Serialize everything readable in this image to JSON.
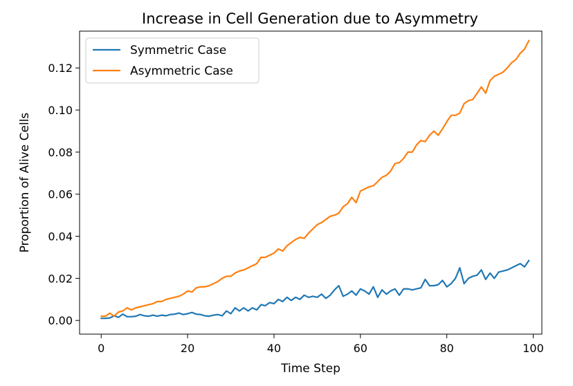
{
  "chart_data": {
    "type": "line",
    "title": "Increase in Cell Generation due to Asymmetry",
    "xlabel": "Time Step",
    "ylabel": "Proportion of Alive Cells",
    "xlim": [
      -5,
      102
    ],
    "ylim": [
      -0.0065,
      0.1375
    ],
    "x_ticks": [
      0,
      20,
      40,
      60,
      80,
      100
    ],
    "y_ticks": [
      0.0,
      0.02,
      0.04,
      0.06,
      0.08,
      0.1,
      0.12
    ],
    "x_tick_labels": [
      "0",
      "20",
      "40",
      "60",
      "80",
      "100"
    ],
    "y_tick_labels": [
      "0.00",
      "0.02",
      "0.04",
      "0.06",
      "0.08",
      "0.10",
      "0.12"
    ],
    "grid": false,
    "legend_position": "upper left",
    "x": [
      0,
      1,
      2,
      3,
      4,
      5,
      6,
      7,
      8,
      9,
      10,
      11,
      12,
      13,
      14,
      15,
      16,
      17,
      18,
      19,
      20,
      21,
      22,
      23,
      24,
      25,
      26,
      27,
      28,
      29,
      30,
      31,
      32,
      33,
      34,
      35,
      36,
      37,
      38,
      39,
      40,
      41,
      42,
      43,
      44,
      45,
      46,
      47,
      48,
      49,
      50,
      51,
      52,
      53,
      54,
      55,
      56,
      57,
      58,
      59,
      60,
      61,
      62,
      63,
      64,
      65,
      66,
      67,
      68,
      69,
      70,
      71,
      72,
      73,
      74,
      75,
      76,
      77,
      78,
      79,
      80,
      81,
      82,
      83,
      84,
      85,
      86,
      87,
      88,
      89,
      90,
      91,
      92,
      93,
      94,
      95,
      96,
      97,
      98,
      99
    ],
    "series": [
      {
        "name": "Symmetric Case",
        "color": "#1f77b4",
        "values": [
          0.001,
          0.001,
          0.0012,
          0.0022,
          0.0015,
          0.003,
          0.0018,
          0.0018,
          0.002,
          0.0028,
          0.0022,
          0.002,
          0.0025,
          0.002,
          0.0025,
          0.0022,
          0.0028,
          0.003,
          0.0035,
          0.0028,
          0.0032,
          0.0038,
          0.003,
          0.0028,
          0.0022,
          0.002,
          0.0025,
          0.0028,
          0.0022,
          0.0045,
          0.0032,
          0.006,
          0.0045,
          0.006,
          0.0045,
          0.006,
          0.005,
          0.0075,
          0.007,
          0.0085,
          0.008,
          0.01,
          0.009,
          0.011,
          0.0095,
          0.011,
          0.01,
          0.012,
          0.011,
          0.0115,
          0.011,
          0.0125,
          0.0105,
          0.012,
          0.0145,
          0.0165,
          0.0115,
          0.0125,
          0.014,
          0.012,
          0.015,
          0.014,
          0.0125,
          0.016,
          0.011,
          0.0145,
          0.0125,
          0.014,
          0.015,
          0.012,
          0.015,
          0.015,
          0.0145,
          0.015,
          0.0155,
          0.0195,
          0.0165,
          0.0165,
          0.017,
          0.019,
          0.016,
          0.0175,
          0.02,
          0.025,
          0.0175,
          0.02,
          0.021,
          0.0215,
          0.024,
          0.0195,
          0.0225,
          0.02,
          0.023,
          0.0235,
          0.024,
          0.025,
          0.026,
          0.027,
          0.0255,
          0.0285
        ]
      },
      {
        "name": "Asymmetric Case",
        "color": "#ff7f0e",
        "values": [
          0.002,
          0.002,
          0.0035,
          0.002,
          0.004,
          0.0045,
          0.006,
          0.005,
          0.006,
          0.0065,
          0.007,
          0.0075,
          0.008,
          0.009,
          0.009,
          0.01,
          0.0105,
          0.011,
          0.0115,
          0.0125,
          0.014,
          0.0135,
          0.0155,
          0.016,
          0.016,
          0.0165,
          0.0175,
          0.0185,
          0.02,
          0.021,
          0.021,
          0.0225,
          0.0235,
          0.024,
          0.025,
          0.026,
          0.027,
          0.03,
          0.03,
          0.031,
          0.032,
          0.034,
          0.033,
          0.0355,
          0.037,
          0.0385,
          0.0395,
          0.039,
          0.0415,
          0.0435,
          0.0455,
          0.0465,
          0.048,
          0.0495,
          0.05,
          0.051,
          0.054,
          0.0555,
          0.0585,
          0.056,
          0.0615,
          0.0625,
          0.0635,
          0.064,
          0.066,
          0.068,
          0.069,
          0.071,
          0.0745,
          0.075,
          0.077,
          0.08,
          0.08,
          0.0835,
          0.0855,
          0.085,
          0.088,
          0.09,
          0.088,
          0.091,
          0.0945,
          0.0975,
          0.0975,
          0.0985,
          0.103,
          0.1045,
          0.105,
          0.108,
          0.111,
          0.108,
          0.114,
          0.116,
          0.117,
          0.118,
          0.12,
          0.1225,
          0.124,
          0.127,
          0.129,
          0.133
        ]
      }
    ]
  }
}
